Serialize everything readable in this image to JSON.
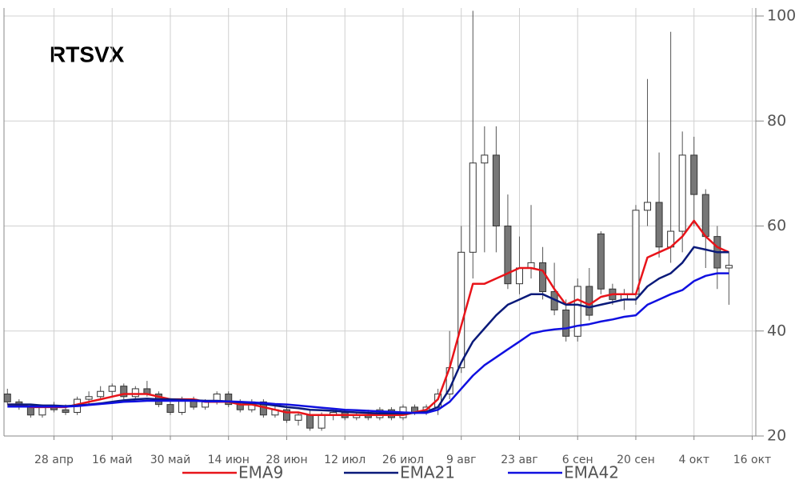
{
  "chart_data": {
    "type": "candlestick",
    "title": "RTSVX",
    "categories": [
      null,
      null,
      null,
      null,
      "28 апр",
      null,
      null,
      null,
      null,
      "16 май",
      null,
      null,
      null,
      null,
      "30 май",
      null,
      null,
      null,
      null,
      "14 июн",
      null,
      null,
      null,
      null,
      "28 июн",
      null,
      null,
      null,
      null,
      "12 июл",
      null,
      null,
      null,
      null,
      "26 июл",
      null,
      null,
      null,
      null,
      "9 авг",
      null,
      null,
      null,
      null,
      "23 авг",
      null,
      null,
      null,
      null,
      "6 сен",
      null,
      null,
      null,
      null,
      "20 сен",
      null,
      null,
      null,
      null,
      "4 окт",
      null,
      null,
      null,
      null,
      "16 окт"
    ],
    "open": [
      28,
      26.5,
      25.5,
      24,
      25.5,
      25,
      24.5,
      27,
      27.5,
      28.5,
      29.5,
      27.5,
      29,
      28,
      26,
      24.5,
      27,
      25.5,
      26.5,
      28,
      26,
      25,
      26.5,
      24,
      25,
      23,
      24,
      21.5,
      24,
      24.5,
      23.5,
      24,
      23.5,
      25,
      23.5,
      25.5,
      24.5,
      25.5,
      28,
      33,
      55,
      72,
      73.5,
      60,
      49,
      52,
      53,
      47.5,
      44,
      39,
      48.5,
      58.5,
      48,
      46,
      47,
      63,
      64.5,
      56,
      59,
      73.5,
      66,
      58,
      52,
      null,
      null
    ],
    "high": [
      29,
      27,
      26,
      26,
      26.5,
      26,
      27.5,
      28.5,
      29.5,
      30,
      30,
      29.5,
      30.5,
      28.5,
      27,
      27.5,
      27.5,
      27,
      28.5,
      28.5,
      27,
      27,
      27,
      26,
      26,
      24.5,
      25,
      24.5,
      25,
      25,
      24.5,
      25,
      25.5,
      25.5,
      26,
      26,
      26,
      29,
      40,
      60,
      101,
      79,
      79,
      66,
      58,
      64,
      56,
      53,
      46,
      50,
      52,
      59,
      49,
      48,
      64,
      88,
      74,
      97,
      78,
      77,
      67,
      60,
      55,
      null,
      null
    ],
    "low": [
      26,
      25,
      23.5,
      23.5,
      24.5,
      24,
      24,
      26,
      27,
      27.5,
      27,
      27,
      27.5,
      25.5,
      24,
      24,
      25,
      25,
      26,
      25.5,
      24.5,
      24.5,
      23.5,
      23.5,
      22.5,
      22,
      21,
      21,
      23,
      23,
      23,
      23,
      23,
      23,
      23,
      24,
      24,
      24,
      27,
      32,
      50,
      55,
      55,
      48,
      47,
      50,
      46,
      43,
      38,
      38,
      42,
      47,
      45,
      44,
      45,
      60,
      54,
      53,
      55,
      60,
      52,
      48,
      45,
      null,
      null
    ],
    "close": [
      26.5,
      25.5,
      24,
      25.5,
      25,
      24.5,
      27,
      27.5,
      28.5,
      29.5,
      27.5,
      29,
      28,
      26,
      24.5,
      27,
      25.5,
      26.5,
      28,
      26,
      25,
      26.5,
      24,
      25,
      23,
      24,
      21.5,
      24,
      24.5,
      23.5,
      24,
      23.5,
      25,
      23.5,
      25.5,
      24.5,
      25.5,
      28,
      33,
      55,
      72,
      73.5,
      60,
      49,
      52,
      53,
      47.5,
      44,
      39,
      48.5,
      43,
      48,
      46,
      47,
      63,
      64.5,
      56,
      59,
      73.5,
      66,
      58,
      52,
      52.5,
      null,
      null
    ],
    "series": [
      {
        "name": "EMA9",
        "color": "#e8141a",
        "values": [
          26,
          26,
          25.5,
          25.5,
          25.5,
          25.5,
          26,
          26.5,
          27,
          27.5,
          28,
          28,
          28,
          27.5,
          27,
          27,
          27,
          26.5,
          26.5,
          26.5,
          26,
          26,
          25.5,
          25,
          24.5,
          24.5,
          24,
          24,
          24,
          24,
          24,
          24,
          24,
          24,
          24,
          24.5,
          25,
          27,
          33,
          41,
          49,
          49,
          50,
          51,
          52,
          52,
          51.5,
          48,
          45,
          46,
          45,
          46.5,
          47,
          47,
          47,
          54,
          55,
          56,
          58,
          61,
          58,
          56,
          55,
          null,
          null
        ]
      },
      {
        "name": "EMA21",
        "color": "#0a1a7a",
        "values": [
          26,
          26,
          26,
          25.8,
          25.8,
          25.7,
          25.8,
          26,
          26.2,
          26.5,
          26.8,
          27,
          27.1,
          27,
          27,
          26.9,
          26.8,
          26.7,
          26.7,
          26.6,
          26.4,
          26.3,
          26.1,
          25.8,
          25.5,
          25.3,
          25,
          24.9,
          24.8,
          24.6,
          24.5,
          24.4,
          24.3,
          24.3,
          24.3,
          24.4,
          24.6,
          25.5,
          29,
          34,
          38,
          40.5,
          43,
          45,
          46,
          47,
          47,
          46,
          45,
          45,
          44.5,
          45,
          45.5,
          46,
          46,
          48.5,
          50,
          51,
          53,
          56,
          55.5,
          55,
          55,
          null,
          null
        ]
      },
      {
        "name": "EMA42",
        "color": "#1010e0",
        "values": [
          25.6,
          25.6,
          25.6,
          25.6,
          25.6,
          25.6,
          25.7,
          25.9,
          26.1,
          26.3,
          26.5,
          26.6,
          26.7,
          26.7,
          26.7,
          26.7,
          26.7,
          26.6,
          26.6,
          26.6,
          26.5,
          26.4,
          26.3,
          26.1,
          26,
          25.8,
          25.6,
          25.4,
          25.2,
          25,
          24.9,
          24.8,
          24.7,
          24.6,
          24.5,
          24.4,
          24.4,
          25,
          26.5,
          29,
          31.5,
          33.5,
          35,
          36.5,
          38,
          39.5,
          40,
          40.3,
          40.5,
          41,
          41.3,
          41.8,
          42.2,
          42.7,
          43,
          45,
          46,
          47,
          47.8,
          49.5,
          50.5,
          51,
          51,
          null,
          null
        ]
      }
    ],
    "ylim": [
      20,
      100
    ],
    "yticks": [
      20,
      40,
      60,
      80,
      100
    ],
    "grid": true,
    "up_color": "#ffffff",
    "down_color": "#777777"
  }
}
